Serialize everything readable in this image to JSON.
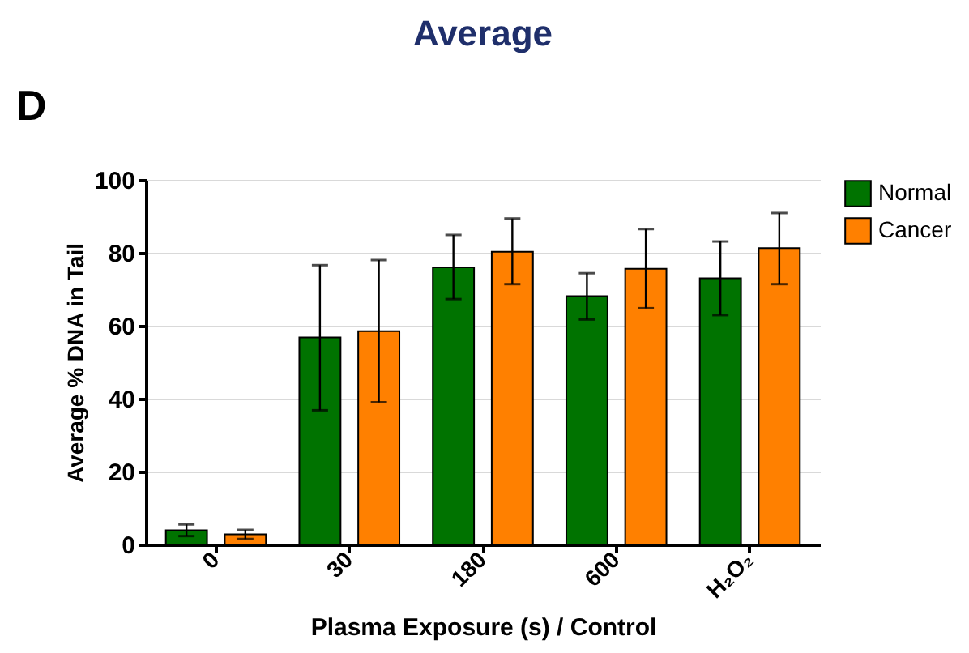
{
  "chart_data": {
    "type": "bar",
    "title": "Average",
    "xlabel": "Plasma  Exposure (s) / Control",
    "ylabel": "Average % DNA in Tail",
    "annotations": [
      "D"
    ],
    "categories": [
      "0",
      "30",
      "180",
      "600",
      "H₂O₂"
    ],
    "series": [
      {
        "name": "Normal",
        "color": "#007300",
        "values": [
          3.9,
          56.8,
          76,
          68.1,
          73
        ],
        "errors": [
          [
            2.3,
            5.5
          ],
          [
            36.8,
            76.6
          ],
          [
            67.3,
            84.9
          ],
          [
            61.7,
            74.4
          ],
          [
            62.9,
            83.1
          ]
        ]
      },
      {
        "name": "Cancer",
        "color": "#ff8000",
        "values": [
          2.8,
          58.5,
          80.3,
          75.6,
          81.3
        ],
        "errors": [
          [
            1.5,
            4
          ],
          [
            39,
            78
          ],
          [
            71.4,
            89.4
          ],
          [
            64.8,
            86.5
          ],
          [
            71.4,
            90.9
          ]
        ]
      }
    ],
    "ylim": [
      0,
      100
    ],
    "yticks": [
      0,
      20,
      40,
      60,
      80,
      100
    ],
    "grid": "y",
    "legend": "right"
  }
}
